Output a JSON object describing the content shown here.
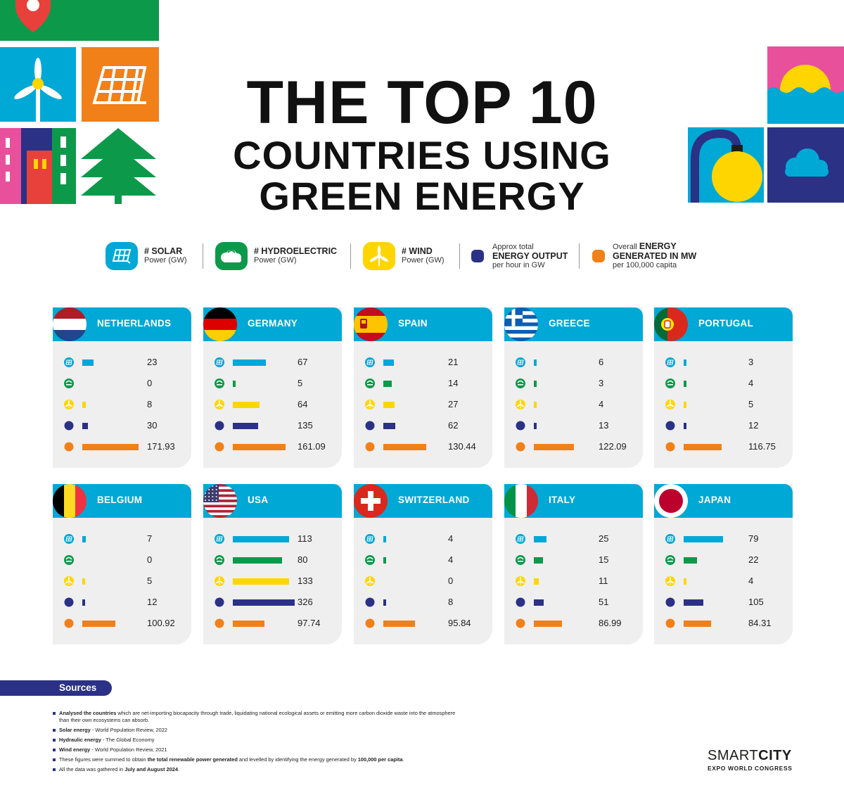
{
  "title": {
    "line1": "THE TOP 10",
    "line2": "COUNTRIES USING",
    "line3": "GREEN ENERGY"
  },
  "legend": {
    "solar_title": "# SOLAR",
    "solar_sub": "Power (GW)",
    "hydro_title": "# HYDROELECTRIC",
    "hydro_sub": "Power (GW)",
    "wind_title": "# WIND",
    "wind_sub": "Power (GW)",
    "output_pre": "Approx total",
    "output_bold": "ENERGY OUTPUT",
    "output_post": "per hour in GW",
    "generated_pre": "Overall",
    "generated_bold1": "ENERGY",
    "generated_bold2": "GENERATED IN MW",
    "generated_post": "per 100,000 capita"
  },
  "colors": {
    "solar": "#00a8d6",
    "hydro": "#0c9a4a",
    "wind": "#ffd500",
    "output": "#2b3185",
    "generated": "#f18019",
    "header": "#00a8d6"
  },
  "chart_data": {
    "type": "bar",
    "metrics": [
      "Solar Power (GW)",
      "Hydroelectric Power (GW)",
      "Wind Power (GW)",
      "Approx total energy output per hour in GW",
      "Overall energy generated in MW per 100,000 capita"
    ],
    "countries": [
      {
        "name": "NETHERLANDS",
        "flag": "netherlands-flag",
        "solar": 23,
        "hydro": 0,
        "wind": 8,
        "output": 30,
        "generated": 171.93,
        "labels": [
          "23",
          "0",
          "8",
          "30",
          "171.93"
        ]
      },
      {
        "name": "GERMANY",
        "flag": "germany-flag",
        "solar": 67,
        "hydro": 5,
        "wind": 64,
        "output": 135,
        "generated": 161.09,
        "labels": [
          "67",
          "5",
          "64",
          "135",
          "161.09"
        ]
      },
      {
        "name": "SPAIN",
        "flag": "spain-flag",
        "solar": 21,
        "hydro": 14,
        "wind": 27,
        "output": 62,
        "generated": 130.44,
        "labels": [
          "21",
          "14",
          "27",
          "62",
          "130.44"
        ]
      },
      {
        "name": "GREECE",
        "flag": "greece-flag",
        "solar": 6,
        "hydro": 3,
        "wind": 4,
        "output": 13,
        "generated": 122.09,
        "labels": [
          "6",
          "3",
          "4",
          "13",
          "122.09"
        ]
      },
      {
        "name": "PORTUGAL",
        "flag": "portugal-flag",
        "solar": 3,
        "hydro": 4,
        "wind": 5,
        "output": 12,
        "generated": 116.75,
        "labels": [
          "3",
          "4",
          "5",
          "12",
          "116.75"
        ]
      },
      {
        "name": "BELGIUM",
        "flag": "belgium-flag",
        "solar": 7,
        "hydro": 0,
        "wind": 5,
        "output": 12,
        "generated": 100.92,
        "labels": [
          "7",
          "0",
          "5",
          "12",
          "100.92"
        ]
      },
      {
        "name": "USA",
        "flag": "usa-flag",
        "solar": 113,
        "hydro": 80,
        "wind": 133,
        "output": 326,
        "generated": 97.74,
        "labels": [
          "113",
          "80",
          "133",
          "326",
          "97.74"
        ]
      },
      {
        "name": "SWITZERLAND",
        "flag": "switzerland-flag",
        "solar": 4,
        "hydro": 4,
        "wind": 0,
        "output": 8,
        "generated": 95.84,
        "labels": [
          "4",
          "4",
          "0",
          "8",
          "95.84"
        ]
      },
      {
        "name": "ITALY",
        "flag": "italy-flag",
        "solar": 25,
        "hydro": 15,
        "wind": 11,
        "output": 51,
        "generated": 86.99,
        "labels": [
          "25",
          "15",
          "11",
          "51",
          "86.99"
        ]
      },
      {
        "name": "JAPAN",
        "flag": "japan-flag",
        "solar": 79,
        "hydro": 22,
        "wind": 4,
        "output": 105,
        "generated": 84.31,
        "labels": [
          "79",
          "22",
          "4",
          "105",
          "84.31"
        ]
      }
    ]
  },
  "sources": {
    "heading": "Sources",
    "notes": [
      {
        "bold": "Analysed the countries",
        "text": " which are net-importing biocapacity through trade, liquidating national ecological assets or emitting more carbon dioxide waste into the atmosphere than their own ecosystems can absorb.",
        "bold2": "",
        "text2": ""
      },
      {
        "bold": "Solar energy",
        "text": " - World Population Review, 2022",
        "bold2": "",
        "text2": ""
      },
      {
        "bold": "Hydraulic energy",
        "text": " - The Global Economy",
        "bold2": "",
        "text2": ""
      },
      {
        "bold": "Wind energy",
        "text": " - World Population Review, 2021",
        "bold2": "",
        "text2": ""
      },
      {
        "bold": "",
        "text": "These figures were summed to obtain ",
        "bold2": "the total renewable power generated",
        "text2": " and levelled by identifying the energy generated by ",
        "bold3": "100,000 per capita",
        "text3": "."
      },
      {
        "bold": "",
        "text": "All the data was gathered in ",
        "bold2": "July and August 2024",
        "text2": "."
      }
    ]
  },
  "brand": {
    "smart": "SMART",
    "city": "CITY",
    "sub": "EXPO WORLD CONGRESS"
  }
}
